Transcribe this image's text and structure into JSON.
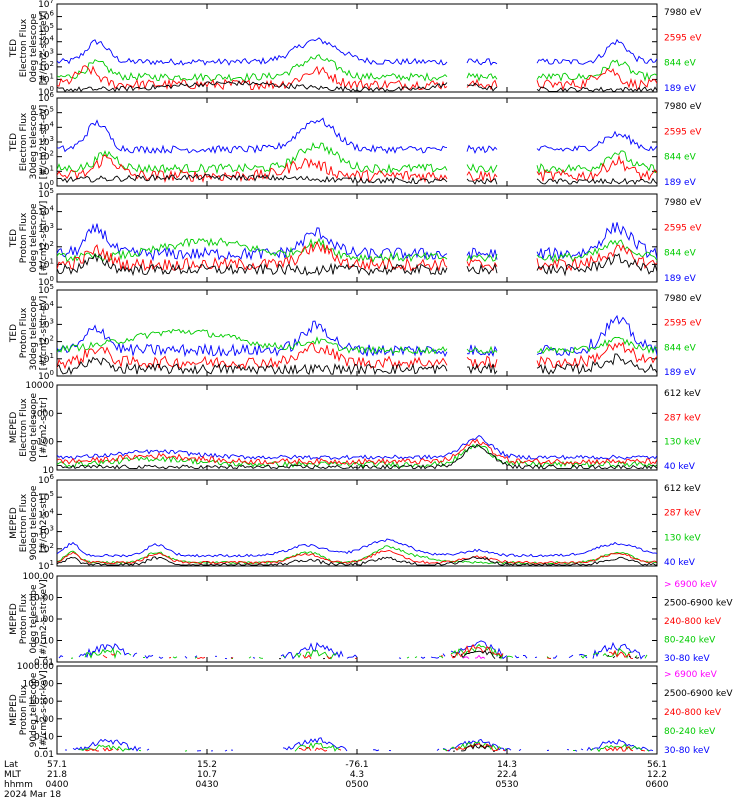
{
  "colors": {
    "blue": "#0000ff",
    "red": "#ff0000",
    "green": "#00cc00",
    "black": "#000000",
    "magenta": "#ff00ff"
  },
  "panels": [
    {
      "id": "ted-e-0",
      "ylabel": [
        "TED",
        "Electron Flux",
        "0deg telescope",
        "[#/cm2-s-str-eV]"
      ],
      "yscale": "log",
      "ylim": [
        1,
        10000000
      ],
      "ticks": [
        "10^0",
        "10^1",
        "10^2",
        "10^3",
        "10^4",
        "10^5",
        "10^6",
        "10^7"
      ],
      "legend": [
        {
          "label": "7980 eV",
          "color": "black"
        },
        {
          "label": "2595 eV",
          "color": "red"
        },
        {
          "label": "844 eV",
          "color": "green"
        },
        {
          "label": "189 eV",
          "color": "blue"
        }
      ]
    },
    {
      "id": "ted-e-30",
      "ylabel": [
        "TED",
        "Electron Flux",
        "30deg telescope",
        "[#/cm2-s-str-eV]"
      ],
      "yscale": "log",
      "ylim": [
        1,
        1000000
      ],
      "ticks": [
        "10^0",
        "10^1",
        "10^2",
        "10^3",
        "10^4",
        "10^5",
        "10^6"
      ],
      "legend": [
        {
          "label": "7980 eV",
          "color": "black"
        },
        {
          "label": "2595 eV",
          "color": "red"
        },
        {
          "label": "844 eV",
          "color": "green"
        },
        {
          "label": "189 eV",
          "color": "blue"
        }
      ]
    },
    {
      "id": "ted-p-0",
      "ylabel": [
        "TED",
        "Proton Flux",
        "0deg telescope",
        "[#/cm2-s-str-eV]"
      ],
      "yscale": "log",
      "ylim": [
        1,
        100000
      ],
      "ticks": [
        "10^0",
        "10^1",
        "10^2",
        "10^3",
        "10^4",
        "10^5"
      ],
      "legend": [
        {
          "label": "7980 eV",
          "color": "black"
        },
        {
          "label": "2595 eV",
          "color": "red"
        },
        {
          "label": "844 eV",
          "color": "green"
        },
        {
          "label": "189 eV",
          "color": "blue"
        }
      ]
    },
    {
      "id": "ted-p-30",
      "ylabel": [
        "TED",
        "Proton Flux",
        "30deg telescope",
        "[#/cm2-s-str-eV]"
      ],
      "yscale": "log",
      "ylim": [
        1,
        100000
      ],
      "ticks": [
        "10^0",
        "10^1",
        "10^2",
        "10^3",
        "10^4",
        "10^5"
      ],
      "legend": [
        {
          "label": "7980 eV",
          "color": "black"
        },
        {
          "label": "2595 eV",
          "color": "red"
        },
        {
          "label": "844 eV",
          "color": "green"
        },
        {
          "label": "189 eV",
          "color": "blue"
        }
      ]
    },
    {
      "id": "meped-e-0",
      "ylabel": [
        "MEPED",
        "Electron Flux",
        "0deg telescope",
        "[#/cm2-s-str]"
      ],
      "yscale": "log",
      "ylim": [
        10,
        10000
      ],
      "ticks": [
        "10",
        "100",
        "1000",
        "10000"
      ],
      "legend": [
        {
          "label": "612 keV",
          "color": "black"
        },
        {
          "label": "287 keV",
          "color": "red"
        },
        {
          "label": "130 keV",
          "color": "green"
        },
        {
          "label": "40 keV",
          "color": "blue"
        }
      ]
    },
    {
      "id": "meped-e-90",
      "ylabel": [
        "MEPED",
        "Electron Flux",
        "90deg telescope",
        "[#/cm2-s-str]"
      ],
      "yscale": "log",
      "ylim": [
        10,
        1000000
      ],
      "ticks": [
        "10^1",
        "10^2",
        "10^3",
        "10^4",
        "10^5",
        "10^6"
      ],
      "legend": [
        {
          "label": "612 keV",
          "color": "black"
        },
        {
          "label": "287 keV",
          "color": "red"
        },
        {
          "label": "130 keV",
          "color": "green"
        },
        {
          "label": "40 keV",
          "color": "blue"
        }
      ]
    },
    {
      "id": "meped-p-0",
      "ylabel": [
        "MEPED",
        "Proton Flux",
        "0deg telescope",
        "[#/cm2-s-str-keV]"
      ],
      "yscale": "log",
      "ylim": [
        0.01,
        100
      ],
      "ticks": [
        "0.01",
        "0.10",
        "1.00",
        "10.00",
        "100.00"
      ],
      "legend": [
        {
          "label": "> 6900 keV",
          "color": "magenta"
        },
        {
          "label": "2500-6900 keV",
          "color": "black"
        },
        {
          "label": "240-800 keV",
          "color": "red"
        },
        {
          "label": "80-240 keV",
          "color": "green"
        },
        {
          "label": "30-80 keV",
          "color": "blue"
        }
      ]
    },
    {
      "id": "meped-p-90",
      "ylabel": [
        "MEPED",
        "Proton Flux",
        "90deg telescope",
        "[#/cm2-s-str-keV]"
      ],
      "yscale": "log",
      "ylim": [
        0.01,
        1000
      ],
      "ticks": [
        "0.01",
        "0.10",
        "1.00",
        "10.00",
        "100.00",
        "1000.00"
      ],
      "legend": [
        {
          "label": "> 6900 keV",
          "color": "magenta"
        },
        {
          "label": "2500-6900 keV",
          "color": "black"
        },
        {
          "label": "240-800 keV",
          "color": "red"
        },
        {
          "label": "80-240 keV",
          "color": "green"
        },
        {
          "label": "30-80 keV",
          "color": "blue"
        }
      ]
    }
  ],
  "xaxis": {
    "row_labels": [
      "Lat",
      "MLT",
      "hhmm",
      "2024 Mar 18"
    ],
    "ticks": [
      {
        "lat": "57.1",
        "mlt": "21.8",
        "hhmm": "0400"
      },
      {
        "lat": "15.2",
        "mlt": "10.7",
        "hhmm": "0430"
      },
      {
        "lat": "-76.1",
        "mlt": "4.3",
        "hhmm": "0500"
      },
      {
        "lat": "14.3",
        "mlt": "22.4",
        "hhmm": "0530"
      },
      {
        "lat": "56.1",
        "mlt": "12.2",
        "hhmm": "0600"
      }
    ]
  },
  "chart_data": {
    "type": "line",
    "x_range": [
      "0400",
      "0600"
    ],
    "date": "2024 Mar 18",
    "grid": false,
    "series_envelopes": [
      {
        "panel": "ted-e-0",
        "series": [
          {
            "name": "189 eV",
            "color": "blue",
            "t": [
              0,
              4,
              8,
              10,
              12,
              16,
              20,
              30,
              40,
              45,
              50,
              55,
              60,
              65,
              70,
              80,
              95,
              105,
              110,
              115,
              120
            ],
            "v": [
              300,
              3000,
              5000,
              800,
              400,
              300,
              200,
              200,
              200,
              400,
              1500,
              200,
              200,
              200,
              200,
              200,
              200,
              1000,
              3000,
              500,
              200
            ]
          },
          {
            "name": "844 eV",
            "color": "green",
            "t": [
              0,
              4,
              8,
              12,
              20,
              40,
              50,
              55,
              65,
              80,
              100,
              110,
              115,
              120
            ],
            "v": [
              30,
              200,
              300,
              50,
              20,
              20,
              800,
              30,
              20,
              20,
              20,
              300,
              30,
              20
            ]
          },
          {
            "name": "2595 eV",
            "color": "red",
            "t": [
              0,
              4,
              8,
              12,
              20,
              50,
              55,
              65,
              80,
              100,
              110,
              120
            ],
            "v": [
              5,
              40,
              50,
              10,
              5,
              10,
              5,
              10,
              20,
              5,
              50,
              5
            ]
          },
          {
            "name": "7980 eV",
            "color": "black",
            "t": [
              0,
              20,
              40,
              60,
              70,
              80,
              100,
              120
            ],
            "v": [
              2,
              3,
              5,
              3,
              5,
              5,
              2,
              2
            ]
          }
        ]
      }
    ]
  }
}
